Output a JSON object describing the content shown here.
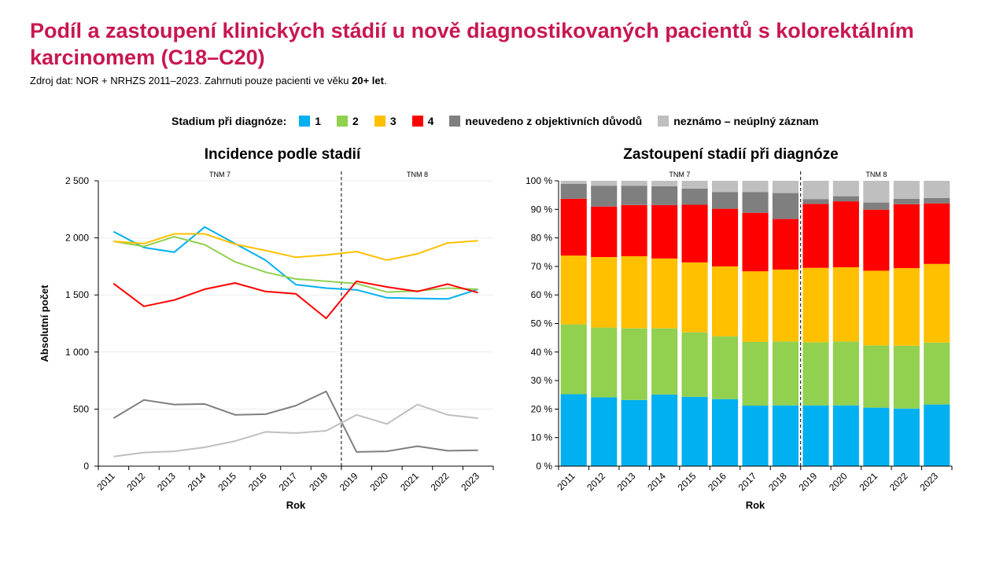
{
  "title": "Podíl a zastoupení klinických stádií u nově diagnostikovaných pacientů s kolorektálním karcinomem (C18–C20)",
  "subtitle": {
    "text": "Zdroj dat: NOR + NRHZS 2011–2023. Zahrnuti pouze pacienti ve věku ",
    "bold": "20+ let",
    "end": "."
  },
  "legend": {
    "title": "Stadium při diagnóze:",
    "items": [
      {
        "label": "1",
        "color": "#00b0f0"
      },
      {
        "label": "2",
        "color": "#92d050"
      },
      {
        "label": "3",
        "color": "#ffc000"
      },
      {
        "label": "4",
        "color": "#ff0000"
      },
      {
        "label": "neuvedeno z objektivních důvodů",
        "color": "#7f7f7f"
      },
      {
        "label": "neznámo – neúplný záznam",
        "color": "#bfbfbf"
      }
    ]
  },
  "chart_data": [
    {
      "type": "line",
      "title": "Incidence podle stadií",
      "xlabel": "Rok",
      "ylabel": "Absolutní počet",
      "ylim": [
        0,
        2500
      ],
      "yticks": [
        0,
        500,
        1000,
        1500,
        2000,
        2500
      ],
      "ytick_labels": [
        "0",
        "500",
        "1 000",
        "1 500",
        "2 000",
        "2 500"
      ],
      "grid": true,
      "categories": [
        "2011",
        "2012",
        "2013",
        "2014",
        "2015",
        "2016",
        "2017",
        "2018",
        "2019",
        "2020",
        "2021",
        "2022",
        "2023"
      ],
      "annotations": [
        {
          "text": "TNM 7",
          "span": [
            "2011",
            "2018"
          ]
        },
        {
          "text": "TNM 8",
          "span": [
            "2019",
            "2023"
          ]
        }
      ],
      "divider_after": "2018",
      "series": [
        {
          "name": "1",
          "color": "#00b0f0",
          "values": [
            2055,
            1915,
            1875,
            2095,
            1950,
            1805,
            1590,
            1560,
            1545,
            1475,
            1470,
            1465,
            1550
          ]
        },
        {
          "name": "2",
          "color": "#92d050",
          "values": [
            1970,
            1925,
            2010,
            1940,
            1790,
            1700,
            1640,
            1620,
            1600,
            1525,
            1535,
            1560,
            1550
          ]
        },
        {
          "name": "3",
          "color": "#ffc000",
          "values": [
            1970,
            1950,
            2035,
            2035,
            1945,
            1890,
            1830,
            1850,
            1880,
            1805,
            1860,
            1955,
            1975
          ]
        },
        {
          "name": "4",
          "color": "#ff0000",
          "values": [
            1600,
            1400,
            1455,
            1550,
            1605,
            1530,
            1510,
            1295,
            1620,
            1570,
            1530,
            1595,
            1520
          ]
        },
        {
          "name": "neuvedeno z objektivních důvodů",
          "color": "#7f7f7f",
          "values": [
            420,
            580,
            540,
            545,
            450,
            455,
            530,
            655,
            125,
            130,
            175,
            135,
            140
          ]
        },
        {
          "name": "neznámo – neúplný záznam",
          "color": "#bfbfbf",
          "values": [
            85,
            120,
            130,
            165,
            220,
            300,
            290,
            310,
            450,
            370,
            540,
            450,
            420
          ]
        }
      ]
    },
    {
      "type": "bar",
      "stacked": true,
      "title": "Zastoupení stadií při diagnóze",
      "xlabel": "Rok",
      "ylim": [
        0,
        100
      ],
      "yticks": [
        0,
        10,
        20,
        30,
        40,
        50,
        60,
        70,
        80,
        90,
        100
      ],
      "ytick_labels": [
        "0 %",
        "10 %",
        "20 %",
        "30 %",
        "40 %",
        "50 %",
        "60 %",
        "70 %",
        "80 %",
        "90 %",
        "100 %"
      ],
      "categories": [
        "2011",
        "2012",
        "2013",
        "2014",
        "2015",
        "2016",
        "2017",
        "2018",
        "2019",
        "2020",
        "2021",
        "2022",
        "2023"
      ],
      "annotations": [
        {
          "text": "TNM 7",
          "span": [
            "2011",
            "2018"
          ]
        },
        {
          "text": "TNM 8",
          "span": [
            "2019",
            "2023"
          ]
        }
      ],
      "divider_after": "2018",
      "series": [
        {
          "name": "1",
          "color": "#00b0f0",
          "values": [
            25.2,
            24.1,
            23.2,
            25.1,
            24.3,
            23.5,
            21.2,
            21.3,
            21.3,
            21.3,
            20.5,
            20.2,
            21.6
          ]
        },
        {
          "name": "2",
          "color": "#92d050",
          "values": [
            24.5,
            24.5,
            25.1,
            23.2,
            22.6,
            22.0,
            22.4,
            22.4,
            22.1,
            22.4,
            21.8,
            22.0,
            21.7
          ]
        },
        {
          "name": "3",
          "color": "#ffc000",
          "values": [
            24.1,
            24.7,
            25.3,
            24.5,
            24.5,
            24.5,
            24.7,
            25.2,
            26.1,
            26.0,
            26.2,
            27.2,
            27.6
          ]
        },
        {
          "name": "4",
          "color": "#ff0000",
          "values": [
            19.9,
            17.7,
            17.9,
            18.7,
            20.2,
            20.2,
            20.5,
            17.7,
            22.4,
            23.1,
            21.4,
            22.4,
            21.2
          ]
        },
        {
          "name": "neuvedeno z objektivních důvodů",
          "color": "#7f7f7f",
          "values": [
            5.2,
            7.3,
            6.7,
            6.6,
            5.7,
            5.9,
            7.3,
            9.1,
            1.7,
            1.8,
            2.5,
            1.9,
            1.9
          ]
        },
        {
          "name": "neznámo – neúplný záznam",
          "color": "#bfbfbf",
          "values": [
            1.1,
            1.7,
            1.8,
            1.9,
            2.7,
            3.9,
            3.9,
            4.3,
            6.4,
            5.4,
            7.6,
            6.3,
            6.0
          ]
        }
      ]
    }
  ]
}
